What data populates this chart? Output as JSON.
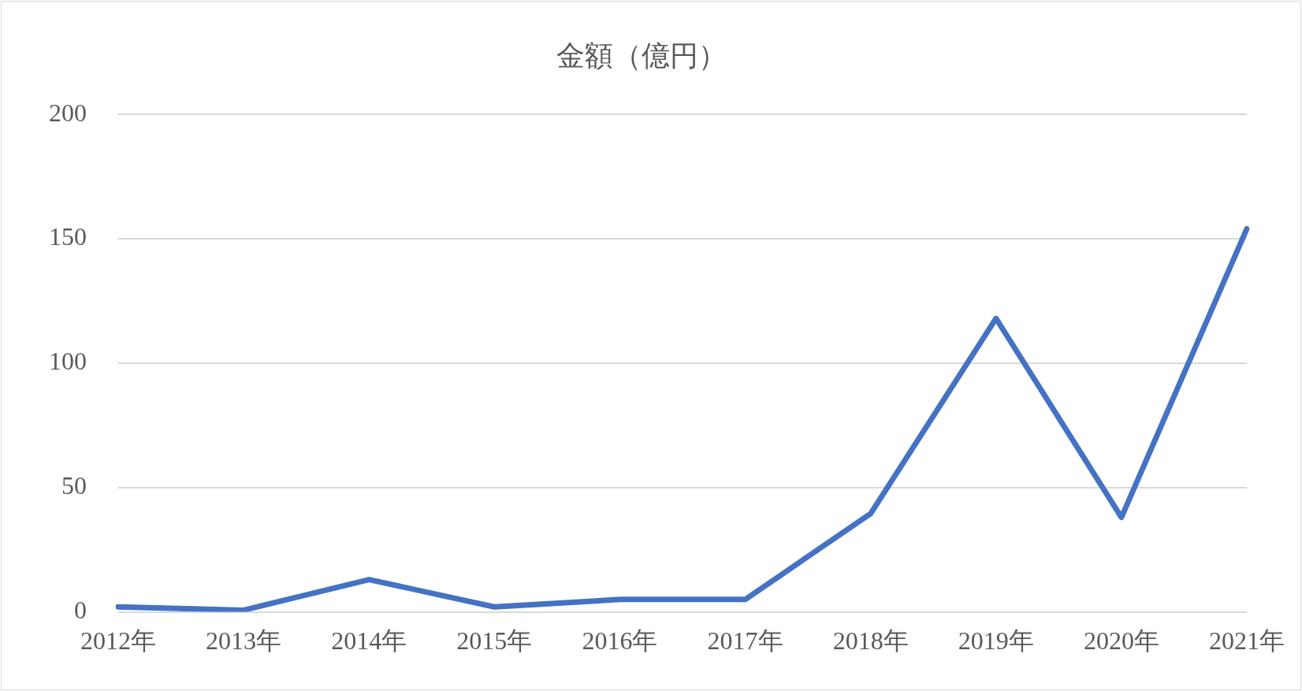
{
  "chart_data": {
    "type": "line",
    "title": "金額（億円）",
    "categories": [
      "2012年",
      "2013年",
      "2014年",
      "2015年",
      "2016年",
      "2017年",
      "2018年",
      "2019年",
      "2020年",
      "2021年"
    ],
    "series": [
      {
        "color": "#4472c4",
        "values": [
          2,
          0.7,
          13,
          2,
          5,
          5,
          39.5,
          118,
          38,
          154
        ]
      }
    ],
    "ylim": [
      0,
      200
    ],
    "yticks": [
      0,
      50,
      100,
      150,
      200
    ],
    "grid": "y",
    "legend": false,
    "marker": "none",
    "line_style": "solid"
  }
}
